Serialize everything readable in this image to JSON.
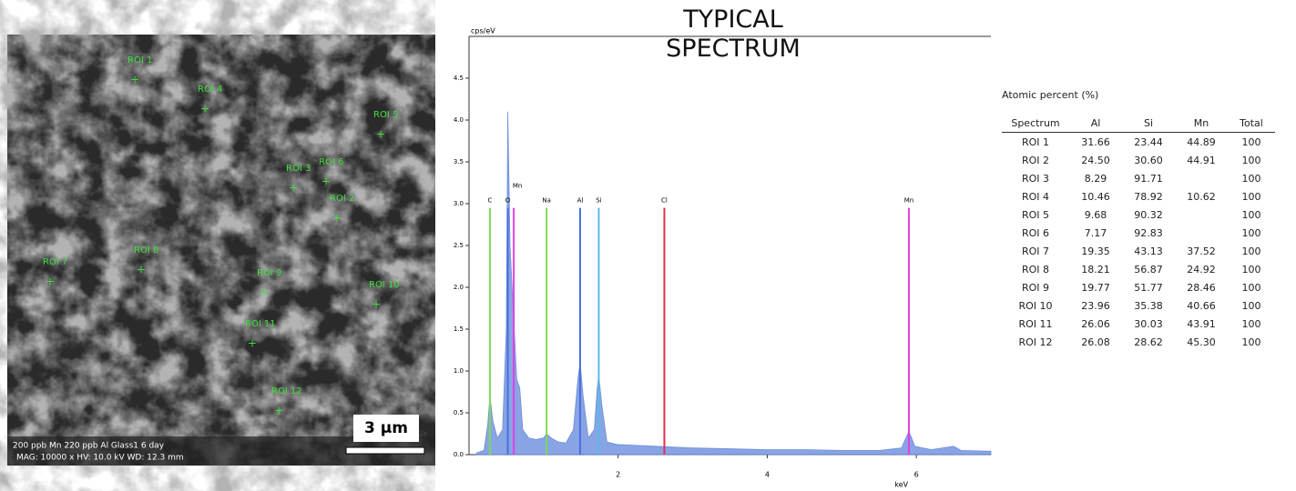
{
  "sem_image": {
    "rois": [
      "ROI 1",
      "ROI 2",
      "ROI 3",
      "ROI 4",
      "ROI 5",
      "ROI 6",
      "ROI 7",
      "ROI 8",
      "ROI 9",
      "ROI 10",
      "ROI 11",
      "ROI 12"
    ],
    "caption": "200 ppb Mn 220 ppb Al Glass1 6 day",
    "settings": "MAG: 10000 x   HV: 10.0 kV   WD: 12.3 mm",
    "scale_label": "3 µm"
  },
  "chart_data": {
    "type": "line",
    "title": "TYPICAL SPECTRUM",
    "y_label": "cps/eV",
    "x_label": "keV",
    "x": [
      0.1,
      0.2,
      0.25,
      0.28,
      0.32,
      0.38,
      0.45,
      0.5,
      0.52,
      0.55,
      0.6,
      0.64,
      0.68,
      0.72,
      0.8,
      0.9,
      1.0,
      1.04,
      1.1,
      1.2,
      1.3,
      1.4,
      1.46,
      1.49,
      1.53,
      1.6,
      1.68,
      1.72,
      1.74,
      1.78,
      1.85,
      2.0,
      2.5,
      3.0,
      3.5,
      4.0,
      4.5,
      5.0,
      5.5,
      5.8,
      5.9,
      5.98,
      6.2,
      6.5,
      6.6,
      7.0
    ],
    "series": [
      {
        "color": "#7c9be3",
        "values": [
          0.02,
          0.05,
          0.35,
          0.7,
          0.4,
          0.2,
          0.3,
          1.5,
          4.1,
          2.5,
          1.6,
          0.9,
          0.8,
          0.3,
          0.2,
          0.18,
          0.2,
          0.25,
          0.2,
          0.15,
          0.14,
          0.3,
          0.9,
          1.1,
          0.7,
          0.2,
          0.3,
          0.8,
          0.95,
          0.6,
          0.15,
          0.12,
          0.1,
          0.08,
          0.07,
          0.06,
          0.06,
          0.05,
          0.05,
          0.08,
          0.28,
          0.1,
          0.06,
          0.1,
          0.05,
          0.04
        ]
      }
    ],
    "peaks": [
      {
        "label": "C",
        "x": 0.28,
        "y": 2.95,
        "color": "#7ed957"
      },
      {
        "label": "O",
        "x": 0.52,
        "y": 2.95,
        "color": "#4a6fdc"
      },
      {
        "label": "Mn",
        "x": 0.6,
        "y": 2.95,
        "color": "#e040e0"
      },
      {
        "label": "Na",
        "x": 1.04,
        "y": 2.95,
        "color": "#7ed957"
      },
      {
        "label": "Al",
        "x": 1.49,
        "y": 2.95,
        "color": "#4a6fdc"
      },
      {
        "label": "Si",
        "x": 1.74,
        "y": 2.95,
        "color": "#5bb8e8"
      },
      {
        "label": "Cl",
        "x": 2.62,
        "y": 2.95,
        "color": "#e0304a"
      },
      {
        "label": "Mn",
        "x": 5.9,
        "y": 2.95,
        "color": "#e040e0"
      }
    ],
    "xlim": [
      0,
      7
    ],
    "ylim": [
      0,
      5
    ],
    "xticks": [
      2,
      4,
      6
    ],
    "yticks": [
      {
        "value": 0,
        "label": "0.0"
      },
      0.5,
      {
        "value": 1,
        "label": "1.0"
      },
      1.5,
      {
        "value": 2,
        "label": "2.0"
      },
      2.5,
      {
        "value": 3,
        "label": "3.0"
      },
      3.5,
      {
        "value": 4,
        "label": "4.0"
      },
      4.5
    ]
  },
  "table": {
    "title": "Atomic percent (%)",
    "header": [
      "Spectrum",
      "Al",
      "Si",
      "Mn",
      "Total"
    ],
    "rows": [
      [
        "ROI 1",
        "31.66",
        "23.44",
        "44.89",
        "100"
      ],
      [
        "ROI 2",
        "24.50",
        "30.60",
        "44.91",
        "100"
      ],
      [
        "ROI 3",
        "8.29",
        "91.71",
        null,
        "100"
      ],
      [
        "ROI 4",
        "10.46",
        "78.92",
        "10.62",
        "100"
      ],
      [
        "ROI 5",
        "9.68",
        "90.32",
        null,
        "100"
      ],
      [
        "ROI 6",
        "7.17",
        "92.83",
        null,
        "100"
      ],
      [
        "ROI 7",
        "19.35",
        "43.13",
        "37.52",
        "100"
      ],
      [
        "ROI 8",
        "18.21",
        "56.87",
        "24.92",
        "100"
      ],
      [
        "ROI 9",
        "19.77",
        "51.77",
        "28.46",
        "100"
      ],
      [
        "ROI 10",
        "23.96",
        "35.38",
        "40.66",
        "100"
      ],
      [
        "ROI 11",
        "26.06",
        "30.03",
        "43.91",
        "100"
      ],
      [
        "ROI 12",
        "26.08",
        "28.62",
        "45.30",
        "100"
      ]
    ]
  }
}
